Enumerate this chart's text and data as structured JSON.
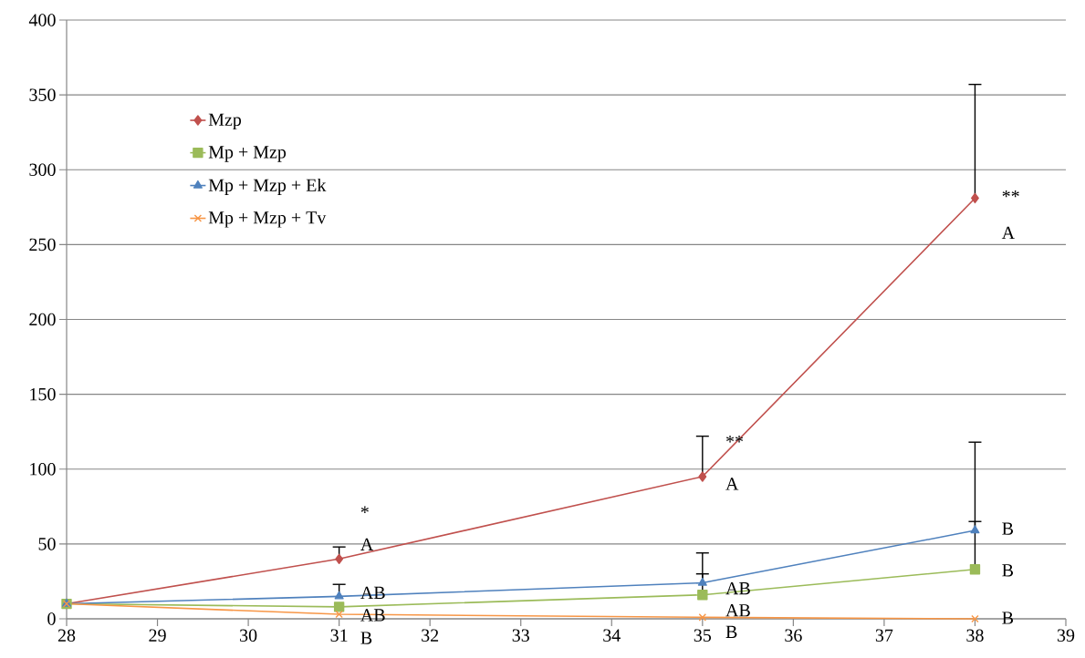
{
  "chart_data": {
    "type": "line",
    "x": [
      28,
      31,
      35,
      38
    ],
    "xlim": [
      28,
      39
    ],
    "xticks": [
      28,
      29,
      30,
      31,
      32,
      33,
      34,
      35,
      36,
      37,
      38,
      39
    ],
    "ylim": [
      0,
      400
    ],
    "yticks": [
      0,
      50,
      100,
      150,
      200,
      250,
      300,
      350,
      400
    ],
    "grid": "y",
    "legend": "top left",
    "series": [
      {
        "name": "Mzp",
        "color": "#c0504d",
        "marker": "diamond",
        "values": [
          10,
          40,
          95,
          281
        ],
        "errors": [
          null,
          [
            40,
            48
          ],
          [
            95,
            122
          ],
          [
            281,
            357
          ]
        ]
      },
      {
        "name": "Mp + Mzp",
        "color": "#9bbb59",
        "marker": "square",
        "values": [
          10,
          8,
          16,
          33
        ],
        "errors": [
          null,
          null,
          [
            16,
            30
          ],
          [
            33,
            65
          ]
        ]
      },
      {
        "name": "Mp + Mzp + Ek",
        "color": "#4f81bd",
        "marker": "triangle",
        "values": [
          10,
          15,
          24,
          59
        ],
        "errors": [
          null,
          [
            15,
            23
          ],
          [
            24,
            44
          ],
          [
            59,
            118
          ]
        ]
      },
      {
        "name": "Mp + Mzp + Tv",
        "color": "#f79646",
        "marker": "cross",
        "values": [
          10,
          3,
          1,
          0
        ]
      }
    ],
    "annotations": [
      {
        "text": "*",
        "x": 31,
        "y": 48
      },
      {
        "text": "A",
        "x": 31,
        "y": 40
      },
      {
        "text": "AB",
        "x": 31,
        "y": 15
      },
      {
        "text": "AB",
        "x": 31,
        "y": 8
      },
      {
        "text": "B",
        "x": 31,
        "y": 3
      },
      {
        "text": "**",
        "x": 35,
        "y": 122
      },
      {
        "text": "A",
        "x": 35,
        "y": 95
      },
      {
        "text": "AB",
        "x": 35,
        "y": 24
      },
      {
        "text": "AB",
        "x": 35,
        "y": 16
      },
      {
        "text": "B",
        "x": 35,
        "y": 1
      },
      {
        "text": "**",
        "x": 38,
        "y": 281
      },
      {
        "text": "A",
        "x": 38,
        "y": 281
      },
      {
        "text": "B",
        "x": 38,
        "y": 59
      },
      {
        "text": "B",
        "x": 38,
        "y": 33
      },
      {
        "text": "B",
        "x": 38,
        "y": 0
      }
    ]
  }
}
